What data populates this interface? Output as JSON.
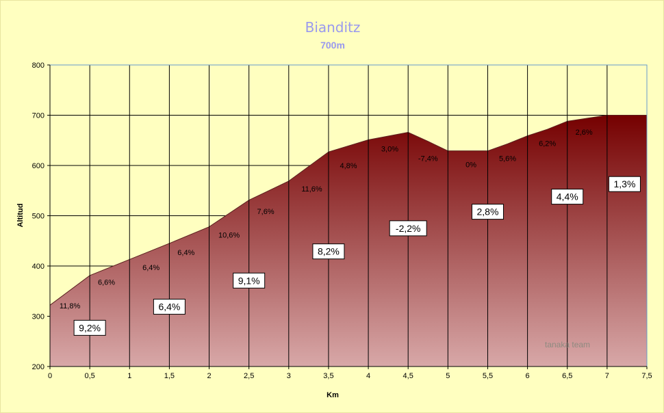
{
  "chart_data": {
    "type": "area",
    "title": "Bianditz",
    "subtitle": "700m",
    "xlabel": "Km",
    "ylabel": "Altitud",
    "xlim": [
      0,
      7.5
    ],
    "ylim": [
      200,
      800
    ],
    "x_ticks": [
      "0",
      "0,5",
      "1",
      "1,5",
      "2",
      "2,5",
      "3",
      "3,5",
      "4",
      "4,5",
      "5",
      "5,5",
      "6",
      "6,5",
      "7",
      "7,5"
    ],
    "y_ticks": [
      "200",
      "300",
      "400",
      "500",
      "600",
      "700",
      "800"
    ],
    "grid": true,
    "profile": {
      "x": [
        0,
        0.5,
        1,
        1.5,
        2,
        2.5,
        3,
        3.5,
        3.75,
        4,
        4.5,
        4.75,
        5,
        5.5,
        5.75,
        6,
        6.25,
        6.5,
        7,
        7.5
      ],
      "y": [
        322,
        381,
        413,
        445,
        478,
        531,
        569,
        627,
        639,
        651,
        666,
        648,
        629,
        629,
        643,
        659,
        672,
        688,
        700,
        700
      ]
    },
    "segment_gradients": [
      {
        "label": "9,2%",
        "x": 0.5,
        "y": 277
      },
      {
        "label": "6,4%",
        "x": 1.5,
        "y": 319
      },
      {
        "label": "9,1%",
        "x": 2.5,
        "y": 371
      },
      {
        "label": "8,2%",
        "x": 3.5,
        "y": 429
      },
      {
        "label": "-2,2%",
        "x": 4.5,
        "y": 475
      },
      {
        "label": "2,8%",
        "x": 5.5,
        "y": 508
      },
      {
        "label": "4,4%",
        "x": 6.5,
        "y": 538
      },
      {
        "label": "1,3%",
        "x": 7.22,
        "y": 563
      }
    ],
    "point_gradients": [
      {
        "label": "11,8%",
        "x": 0.25,
        "y": 321
      },
      {
        "label": "6,6%",
        "x": 0.71,
        "y": 368
      },
      {
        "label": "6,4%",
        "x": 1.27,
        "y": 397
      },
      {
        "label": "6,4%",
        "x": 1.71,
        "y": 427
      },
      {
        "label": "10,6%",
        "x": 2.25,
        "y": 462
      },
      {
        "label": "7,6%",
        "x": 2.71,
        "y": 509
      },
      {
        "label": "11,6%",
        "x": 3.29,
        "y": 554
      },
      {
        "label": "4,8%",
        "x": 3.75,
        "y": 600
      },
      {
        "label": "3,0%",
        "x": 4.27,
        "y": 633
      },
      {
        "label": "-7,4%",
        "x": 4.75,
        "y": 614
      },
      {
        "label": "0%",
        "x": 5.29,
        "y": 602
      },
      {
        "label": "5,6%",
        "x": 5.75,
        "y": 614
      },
      {
        "label": "6,2%",
        "x": 6.25,
        "y": 644
      },
      {
        "label": "2,6%",
        "x": 6.71,
        "y": 667
      }
    ],
    "watermark": "tanaka team",
    "colors": {
      "background": "#FFFFC0",
      "fill_top": "#750000",
      "fill_bottom": "#D8A8A8",
      "title": "#9999EE"
    }
  }
}
